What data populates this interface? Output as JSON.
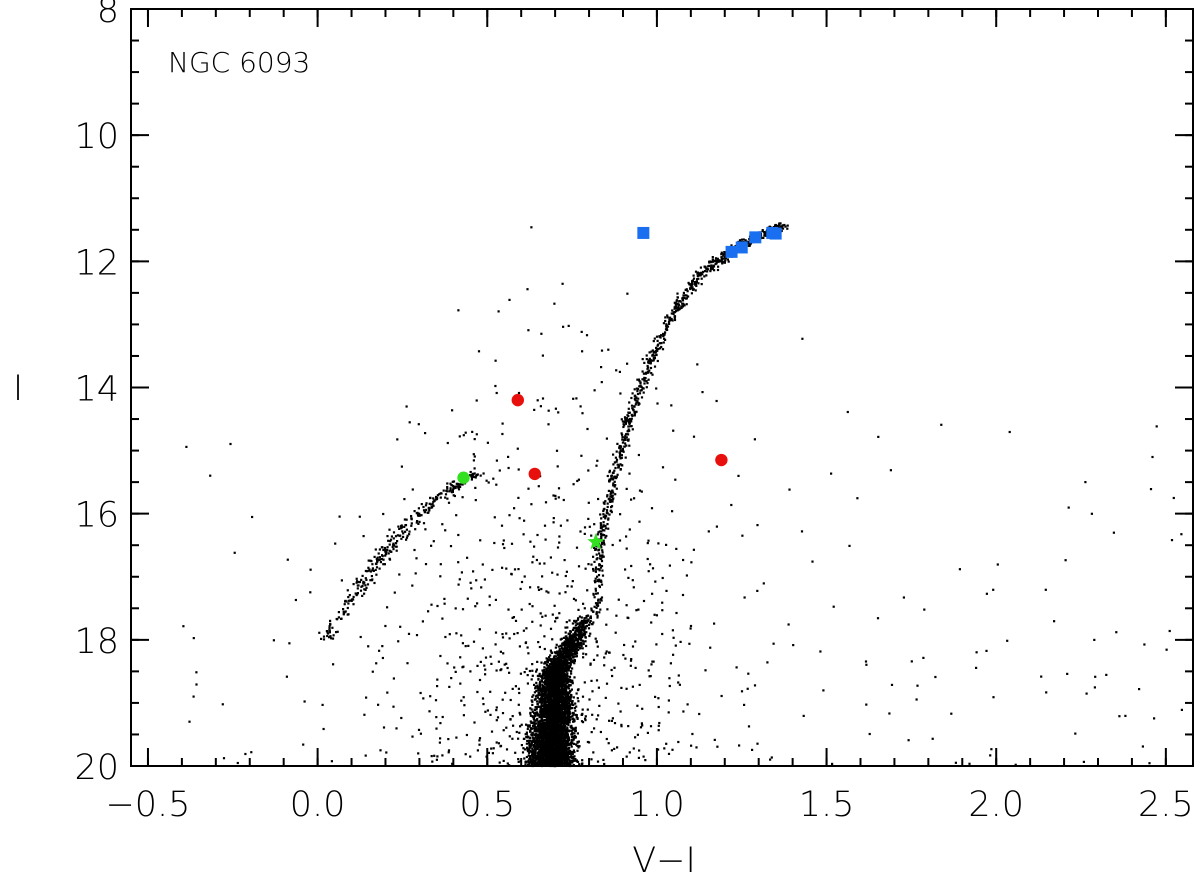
{
  "chart_data": {
    "type": "scatter",
    "title": "",
    "annotation": "NGC 6093",
    "xlabel": "V−I",
    "ylabel": "I",
    "xlim": [
      -0.55,
      2.58
    ],
    "ylim": [
      20.0,
      8.0
    ],
    "y_inverted": true,
    "grid": false,
    "x_major_ticks": [
      -0.5,
      0.0,
      0.5,
      1.0,
      1.5,
      2.0,
      2.5
    ],
    "x_tick_labels": [
      "−0.5",
      "0.0",
      "0.5",
      "1.0",
      "1.5",
      "2.0",
      "2.5"
    ],
    "x_minor_step": 0.1,
    "y_major_ticks": [
      8,
      10,
      12,
      14,
      16,
      18,
      20
    ],
    "y_tick_labels": [
      "8",
      "10",
      "12",
      "14",
      "16",
      "18",
      "20"
    ],
    "y_minor_step": 0.5,
    "colors": {
      "field_stars": "#000000",
      "blue_squares": "#1a6ff0",
      "red_circles": "#e8100c",
      "green_markers": "#33e020",
      "axes": "#000000"
    },
    "series": [
      {
        "marker": "square",
        "color": "#1a6ff0",
        "points": [
          [
            0.96,
            11.55
          ],
          [
            1.22,
            11.85
          ],
          [
            1.25,
            11.78
          ],
          [
            1.29,
            11.62
          ],
          [
            1.34,
            11.55
          ],
          [
            1.35,
            11.56
          ]
        ]
      },
      {
        "marker": "circle",
        "color": "#e8100c",
        "points": [
          [
            0.59,
            14.2
          ],
          [
            0.64,
            15.37
          ],
          [
            1.19,
            15.15
          ]
        ]
      },
      {
        "marker": "circle",
        "color": "#33e020",
        "points": [
          [
            0.43,
            15.43
          ]
        ]
      },
      {
        "marker": "star",
        "color": "#33e020",
        "points": [
          [
            0.82,
            16.45
          ]
        ]
      },
      {
        "marker": "dot",
        "color": "#000000",
        "description_of_structures": [
          {
            "part": "main_sequence_turnoff",
            "x_range": [
              0.55,
              0.85
            ],
            "y_range": [
              17.6,
              20.0
            ],
            "n": 4500
          },
          {
            "part": "subgiant_and_red_giant_branch",
            "path": [
              [
                0.82,
                17.6
              ],
              [
                0.83,
                16.5
              ],
              [
                0.87,
                15.5
              ],
              [
                0.92,
                14.5
              ],
              [
                0.98,
                13.6
              ],
              [
                1.05,
                12.8
              ],
              [
                1.13,
                12.2
              ],
              [
                1.22,
                11.85
              ],
              [
                1.3,
                11.6
              ],
              [
                1.37,
                11.45
              ]
            ],
            "n": 900
          },
          {
            "part": "horizontal_branch",
            "path": [
              [
                0.02,
                18.0
              ],
              [
                0.12,
                17.2
              ],
              [
                0.2,
                16.6
              ],
              [
                0.28,
                16.1
              ],
              [
                0.38,
                15.65
              ],
              [
                0.47,
                15.35
              ]
            ],
            "n": 320
          },
          {
            "part": "field_scatter",
            "x_range": [
              -0.4,
              2.55
            ],
            "y_range": [
              11.0,
              20.0
            ],
            "n": 900
          }
        ]
      }
    ]
  }
}
